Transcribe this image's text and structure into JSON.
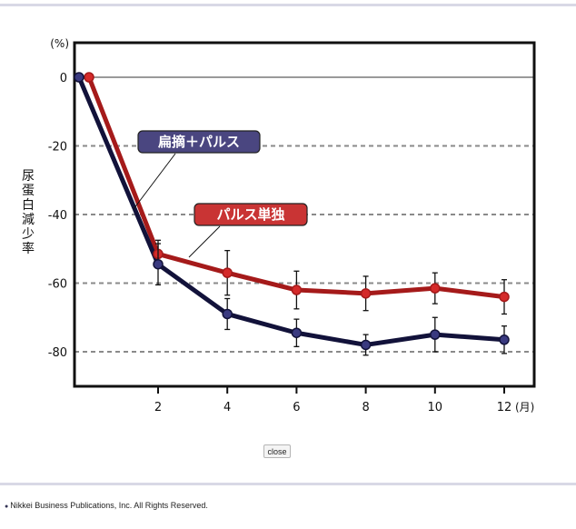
{
  "chart_data": {
    "type": "line",
    "title": "",
    "ylabel": "尿蛋白減少率",
    "yunit": "(%)",
    "xunit": "(月)",
    "xlabel": "",
    "ylim": [
      -90,
      0
    ],
    "xlim": [
      0,
      13
    ],
    "yticks": [
      0,
      -20,
      -40,
      -60,
      -80
    ],
    "ytick_labels": [
      "0",
      "-20",
      "-40",
      "-60",
      "-80"
    ],
    "xticks": [
      2,
      4,
      6,
      8,
      10,
      12
    ],
    "xtick_labels": [
      "2",
      "4",
      "6",
      "8",
      "10",
      "12"
    ],
    "grid": "horizontal dashed",
    "series": [
      {
        "name": "扁摘＋パルス",
        "color": "#12123a",
        "marker_color": "#3a3a80",
        "label_bg": "#4a4680",
        "x": [
          0,
          2,
          4,
          6,
          8,
          10,
          12
        ],
        "values": [
          0,
          -54.5,
          -69,
          -74.5,
          -78,
          -75,
          -76.5
        ],
        "error": [
          0,
          6,
          4.5,
          4,
          3,
          5,
          4
        ]
      },
      {
        "name": "パルス単独",
        "color": "#a51a1a",
        "marker_color": "#d42a2a",
        "label_bg": "#c93434",
        "x": [
          0,
          2,
          4,
          6,
          8,
          10,
          12
        ],
        "values": [
          0,
          -51.5,
          -57,
          -62,
          -63,
          -61.5,
          -64
        ],
        "error": [
          0,
          4,
          6.5,
          5.5,
          5,
          4.5,
          5
        ]
      }
    ]
  },
  "close_label": "close",
  "footer": {
    "copyright": "Nikkei Business Publications, Inc. All Rights Reserved."
  }
}
